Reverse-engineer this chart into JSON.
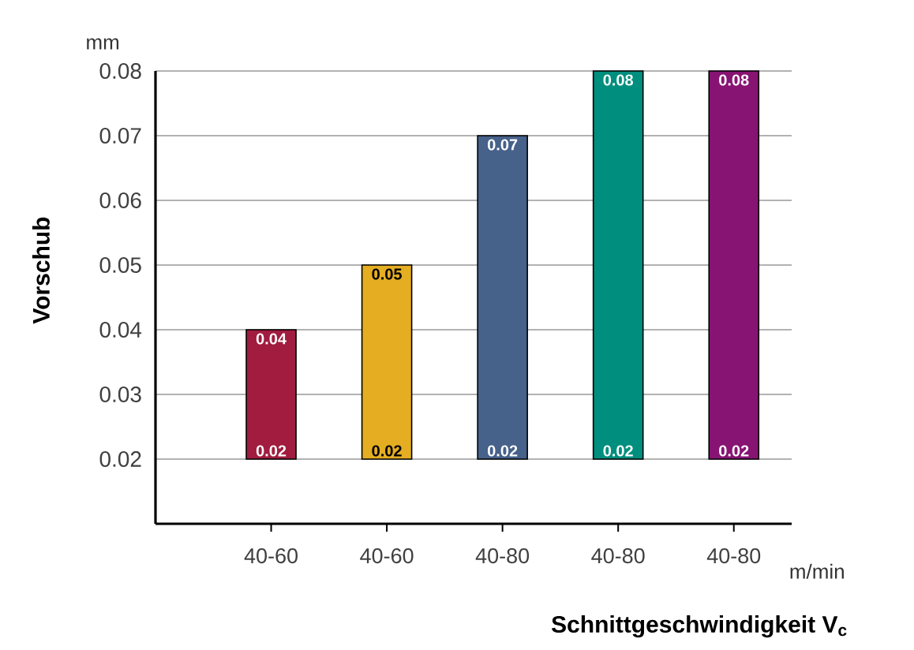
{
  "chart_data": {
    "type": "bar",
    "xlabel": "Schnittgeschwindigkeit V$_{c}$",
    "ylabel": "Vorschub",
    "categories": [
      "40-60",
      "40-60",
      "40-80",
      "40-80",
      "40-80"
    ],
    "base": [
      0.02,
      0.02,
      0.02,
      0.02,
      0.02
    ],
    "values": [
      0.02,
      0.03,
      0.05,
      0.06,
      0.06
    ],
    "value_labels": [
      "0.04",
      "0.05",
      "0.07",
      "0.08",
      "0.08"
    ],
    "colors": [
      "#a11c3f",
      "#e5ae22",
      "#46618a",
      "#008f7e",
      "#871473"
    ],
    "ylim": [
      0.01,
      0.08
    ],
    "yticks": [
      0.02,
      0.03,
      0.04,
      0.05,
      0.06,
      0.07,
      0.08
    ],
    "grid": "y",
    "annotations": [
      "mm",
      "m/min",
      "0.02",
      "0.02",
      "0.02",
      "0.02",
      "0.02"
    ]
  }
}
